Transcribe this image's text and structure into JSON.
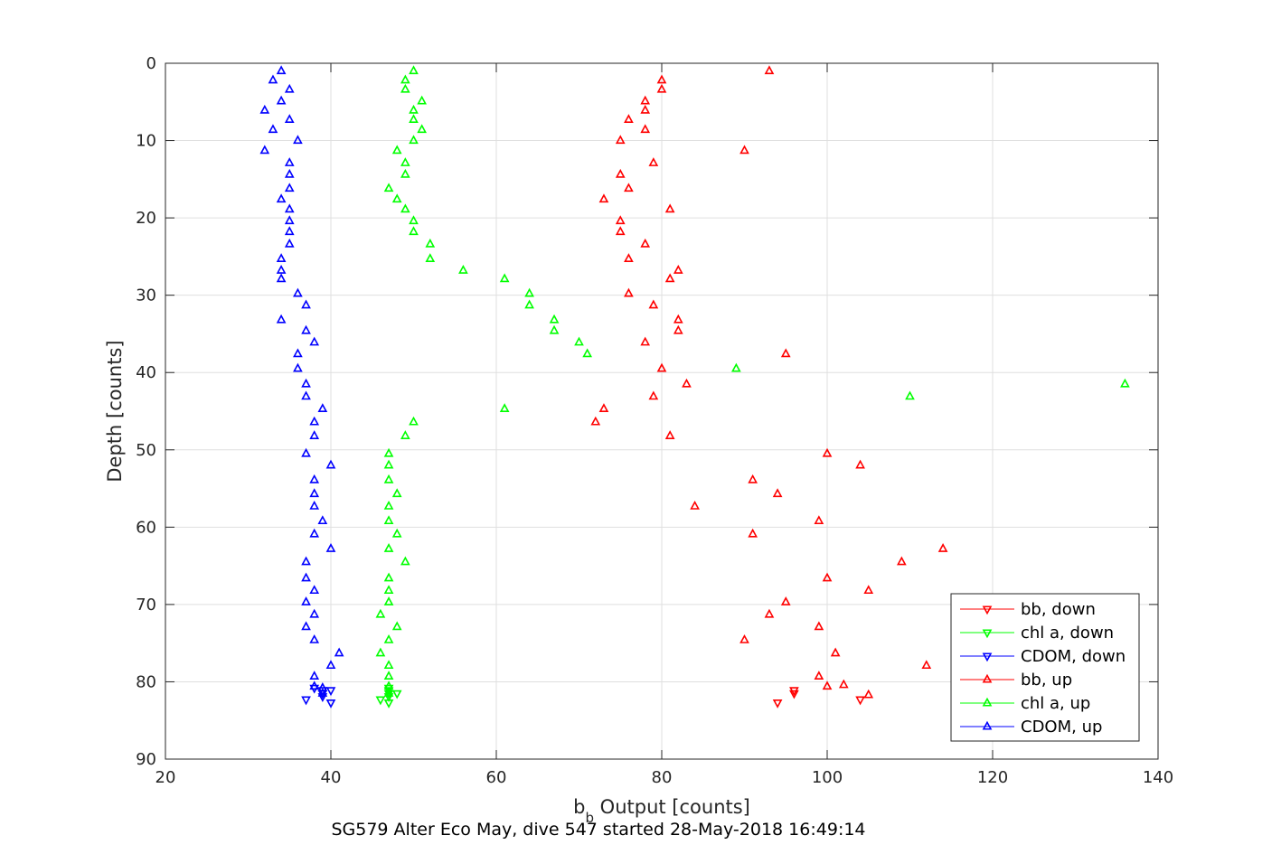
{
  "chart_data": {
    "type": "scatter",
    "title": "",
    "xlabel_main": "b",
    "xlabel_sub": "b",
    "xlabel_rest": " Output [counts]",
    "ylabel": "Depth [counts]",
    "caption": "SG579 Alter Eco May, dive 547 started 28-May-2018 16:49:14",
    "xlim": [
      20,
      140
    ],
    "ylim": [
      0,
      90
    ],
    "y_reversed": true,
    "grid": true,
    "xticks": [
      "20",
      "40",
      "60",
      "80",
      "100",
      "120",
      "140"
    ],
    "yticks": [
      "0",
      "10",
      "20",
      "30",
      "40",
      "50",
      "60",
      "70",
      "80",
      "90"
    ],
    "legend_position": "bottom-right",
    "series": [
      {
        "name": "bb, down",
        "color": "#ff0000",
        "marker": "triangle-down",
        "points": [
          [
            94,
            82.7
          ],
          [
            96,
            81.5
          ],
          [
            96,
            81.1
          ],
          [
            104,
            82.3
          ]
        ]
      },
      {
        "name": "chl a, down",
        "color": "#00ff00",
        "marker": "triangle-down",
        "points": [
          [
            46,
            82.3
          ],
          [
            47,
            82.7
          ],
          [
            47,
            81.9
          ],
          [
            47,
            81.5
          ],
          [
            47,
            81.1
          ],
          [
            48,
            81.5
          ],
          [
            47,
            80.8
          ]
        ]
      },
      {
        "name": "CDOM, down",
        "color": "#0000ff",
        "marker": "triangle-down",
        "points": [
          [
            37,
            82.3
          ],
          [
            38,
            80.8
          ],
          [
            39,
            81.5
          ],
          [
            39,
            81.9
          ],
          [
            40,
            82.7
          ],
          [
            40,
            81.1
          ],
          [
            39,
            81.1
          ]
        ]
      },
      {
        "name": "bb, up",
        "color": "#ff0000",
        "marker": "triangle-up",
        "points": [
          [
            93,
            1.0
          ],
          [
            80,
            2.2
          ],
          [
            80,
            3.4
          ],
          [
            78,
            4.9
          ],
          [
            78,
            6.1
          ],
          [
            76,
            7.3
          ],
          [
            78,
            8.6
          ],
          [
            75,
            10.0
          ],
          [
            90,
            11.3
          ],
          [
            79,
            12.9
          ],
          [
            75,
            14.4
          ],
          [
            76,
            16.2
          ],
          [
            73,
            17.6
          ],
          [
            81,
            18.9
          ],
          [
            75,
            20.4
          ],
          [
            75,
            21.8
          ],
          [
            78,
            23.4
          ],
          [
            76,
            25.3
          ],
          [
            82,
            26.8
          ],
          [
            81,
            27.9
          ],
          [
            76,
            29.8
          ],
          [
            79,
            31.3
          ],
          [
            82,
            33.2
          ],
          [
            82,
            34.6
          ],
          [
            78,
            36.1
          ],
          [
            95,
            37.6
          ],
          [
            80,
            39.5
          ],
          [
            83,
            41.5
          ],
          [
            79,
            43.1
          ],
          [
            73,
            44.7
          ],
          [
            72,
            46.4
          ],
          [
            81,
            48.2
          ],
          [
            100,
            50.5
          ],
          [
            104,
            52.0
          ],
          [
            91,
            53.9
          ],
          [
            94,
            55.7
          ],
          [
            84,
            57.3
          ],
          [
            99,
            59.2
          ],
          [
            91,
            60.9
          ],
          [
            114,
            62.8
          ],
          [
            109,
            64.5
          ],
          [
            100,
            66.6
          ],
          [
            105,
            68.2
          ],
          [
            95,
            69.7
          ],
          [
            93,
            71.3
          ],
          [
            99,
            72.9
          ],
          [
            90,
            74.6
          ],
          [
            101,
            76.3
          ],
          [
            112,
            77.9
          ],
          [
            99,
            79.3
          ],
          [
            100,
            80.6
          ],
          [
            102,
            80.4
          ],
          [
            105,
            81.7
          ]
        ]
      },
      {
        "name": "chl a, up",
        "color": "#00ff00",
        "marker": "triangle-up",
        "points": [
          [
            50,
            1.0
          ],
          [
            49,
            2.2
          ],
          [
            49,
            3.4
          ],
          [
            51,
            4.9
          ],
          [
            50,
            6.1
          ],
          [
            50,
            7.3
          ],
          [
            51,
            8.6
          ],
          [
            50,
            10.0
          ],
          [
            48,
            11.3
          ],
          [
            49,
            12.9
          ],
          [
            49,
            14.4
          ],
          [
            47,
            16.2
          ],
          [
            48,
            17.6
          ],
          [
            49,
            18.9
          ],
          [
            50,
            20.4
          ],
          [
            50,
            21.8
          ],
          [
            52,
            23.4
          ],
          [
            52,
            25.3
          ],
          [
            56,
            26.8
          ],
          [
            61,
            27.9
          ],
          [
            64,
            29.8
          ],
          [
            64,
            31.3
          ],
          [
            67,
            33.2
          ],
          [
            67,
            34.6
          ],
          [
            70,
            36.1
          ],
          [
            71,
            37.6
          ],
          [
            89,
            39.5
          ],
          [
            136,
            41.5
          ],
          [
            110,
            43.1
          ],
          [
            61,
            44.7
          ],
          [
            50,
            46.4
          ],
          [
            49,
            48.2
          ],
          [
            47,
            50.5
          ],
          [
            47,
            52.0
          ],
          [
            47,
            53.9
          ],
          [
            48,
            55.7
          ],
          [
            47,
            57.3
          ],
          [
            47,
            59.2
          ],
          [
            48,
            60.9
          ],
          [
            47,
            62.8
          ],
          [
            49,
            64.5
          ],
          [
            47,
            66.6
          ],
          [
            47,
            68.2
          ],
          [
            47,
            69.7
          ],
          [
            46,
            71.3
          ],
          [
            48,
            72.9
          ],
          [
            47,
            74.6
          ],
          [
            46,
            76.3
          ],
          [
            47,
            77.9
          ],
          [
            47,
            79.3
          ],
          [
            47,
            80.6
          ],
          [
            47,
            81.5
          ]
        ]
      },
      {
        "name": "CDOM, up",
        "color": "#0000ff",
        "marker": "triangle-up",
        "points": [
          [
            34,
            1.0
          ],
          [
            33,
            2.2
          ],
          [
            35,
            3.4
          ],
          [
            34,
            4.9
          ],
          [
            32,
            6.1
          ],
          [
            35,
            7.3
          ],
          [
            33,
            8.6
          ],
          [
            36,
            10.0
          ],
          [
            32,
            11.3
          ],
          [
            35,
            12.9
          ],
          [
            35,
            14.4
          ],
          [
            35,
            16.2
          ],
          [
            34,
            17.6
          ],
          [
            35,
            18.9
          ],
          [
            35,
            20.4
          ],
          [
            35,
            21.8
          ],
          [
            35,
            23.4
          ],
          [
            34,
            25.3
          ],
          [
            34,
            26.8
          ],
          [
            34,
            27.9
          ],
          [
            36,
            29.8
          ],
          [
            37,
            31.3
          ],
          [
            34,
            33.2
          ],
          [
            37,
            34.6
          ],
          [
            38,
            36.1
          ],
          [
            36,
            37.6
          ],
          [
            36,
            39.5
          ],
          [
            37,
            41.5
          ],
          [
            37,
            43.1
          ],
          [
            39,
            44.7
          ],
          [
            38,
            46.4
          ],
          [
            38,
            48.2
          ],
          [
            37,
            50.5
          ],
          [
            40,
            52.0
          ],
          [
            38,
            53.9
          ],
          [
            38,
            55.7
          ],
          [
            38,
            57.3
          ],
          [
            39,
            59.2
          ],
          [
            38,
            60.9
          ],
          [
            40,
            62.8
          ],
          [
            37,
            64.5
          ],
          [
            37,
            66.6
          ],
          [
            38,
            68.2
          ],
          [
            37,
            69.7
          ],
          [
            38,
            71.3
          ],
          [
            37,
            72.9
          ],
          [
            38,
            74.6
          ],
          [
            41,
            76.3
          ],
          [
            40,
            77.9
          ],
          [
            38,
            79.3
          ],
          [
            38,
            80.6
          ],
          [
            39,
            80.8
          ],
          [
            39,
            81.5
          ]
        ]
      }
    ]
  }
}
